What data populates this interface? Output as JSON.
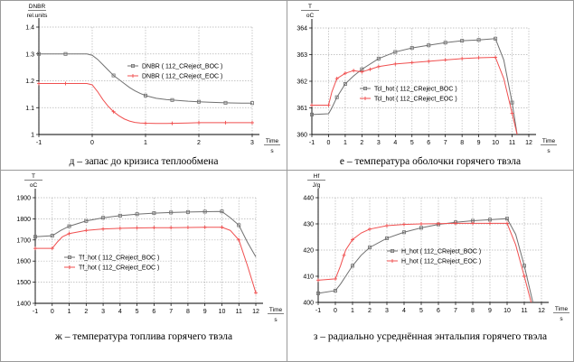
{
  "chart_data": [
    {
      "type": "line",
      "caption": "д – запас до кризиса теплообмена",
      "ylabel_top": "DNBR",
      "ylabel_bottom": "rel.units",
      "xlabel_top": "Time",
      "xlabel_bottom": "s",
      "xlim": [
        -1,
        3
      ],
      "ylim": [
        1.0,
        1.4
      ],
      "xticks": [
        "-1",
        "0",
        "1",
        "2",
        "3"
      ],
      "yticks": [
        "1",
        "1.1",
        "1.2",
        "1.3",
        "1.4"
      ],
      "series": [
        {
          "name": "DNBR ( 112_CReject_BOC )",
          "color": "#707070",
          "marker": "square",
          "x": [
            -1,
            -0.5,
            -0.1,
            0,
            0.1,
            0.2,
            0.3,
            0.4,
            0.5,
            0.6,
            0.7,
            0.8,
            0.9,
            1.0,
            1.2,
            1.4,
            1.6,
            1.8,
            2.0,
            2.2,
            2.5,
            2.8,
            3.0
          ],
          "values": [
            1.3,
            1.3,
            1.3,
            1.295,
            1.28,
            1.26,
            1.24,
            1.22,
            1.205,
            1.19,
            1.175,
            1.163,
            1.153,
            1.145,
            1.135,
            1.13,
            1.127,
            1.124,
            1.122,
            1.12,
            1.118,
            1.117,
            1.117
          ],
          "marker_x": [
            -1,
            -0.5,
            0.4,
            1.0,
            1.5,
            2.0,
            2.5,
            3.0
          ]
        },
        {
          "name": "DNBR ( 112_CReject_EOC )",
          "color": "#f05050",
          "marker": "plus",
          "x": [
            -1,
            -0.5,
            -0.1,
            0,
            0.1,
            0.2,
            0.3,
            0.4,
            0.5,
            0.6,
            0.7,
            0.8,
            0.9,
            1.0,
            1.2,
            1.4,
            1.6,
            1.8,
            2.0,
            2.2,
            2.5,
            2.8,
            3.0
          ],
          "values": [
            1.19,
            1.19,
            1.19,
            1.185,
            1.16,
            1.13,
            1.105,
            1.085,
            1.07,
            1.058,
            1.05,
            1.045,
            1.043,
            1.042,
            1.041,
            1.041,
            1.042,
            1.043,
            1.044,
            1.044,
            1.044,
            1.044,
            1.044
          ],
          "marker_x": [
            -1,
            -0.5,
            0.4,
            1.0,
            1.5,
            2.0,
            2.5,
            3.0
          ]
        }
      ]
    },
    {
      "type": "line",
      "caption": "е – температура оболочки горячего твэла",
      "ylabel_top": "T",
      "ylabel_bottom": "oC",
      "xlabel_top": "Time",
      "xlabel_bottom": "s",
      "xlim": [
        -1,
        12
      ],
      "ylim": [
        360,
        364
      ],
      "xticks": [
        "-1",
        "0",
        "1",
        "2",
        "3",
        "4",
        "5",
        "6",
        "7",
        "8",
        "9",
        "10",
        "11",
        "12"
      ],
      "yticks": [
        "360",
        "361",
        "362",
        "363",
        "364"
      ],
      "series": [
        {
          "name": "Tcl_hot ( 112_CReject_BOC )",
          "color": "#707070",
          "marker": "square",
          "x": [
            -1,
            0,
            0.2,
            0.5,
            1,
            1.5,
            2,
            3,
            4,
            5,
            6,
            7,
            8,
            9,
            10,
            10.5,
            11,
            11.3
          ],
          "values": [
            360.75,
            360.78,
            361.0,
            361.4,
            361.9,
            362.2,
            362.45,
            362.85,
            363.1,
            363.25,
            363.35,
            363.45,
            363.52,
            363.55,
            363.6,
            362.8,
            361.2,
            360.0
          ],
          "marker_x": [
            -1,
            0.5,
            1,
            2,
            3,
            4,
            5,
            6,
            7,
            8,
            9,
            10,
            11
          ]
        },
        {
          "name": "Tcl_hot ( 112_CReject_EOC )",
          "color": "#f05050",
          "marker": "plus",
          "x": [
            -1,
            0,
            0.2,
            0.5,
            1,
            1.5,
            2,
            2.5,
            3,
            4,
            5,
            6,
            7,
            8,
            9,
            10,
            10.5,
            11,
            11.3
          ],
          "values": [
            361.1,
            361.1,
            361.6,
            362.1,
            362.3,
            362.4,
            362.35,
            362.45,
            362.55,
            362.65,
            362.7,
            362.75,
            362.8,
            362.85,
            362.88,
            362.9,
            362.1,
            360.8,
            360.0
          ],
          "marker_x": [
            -1,
            0,
            0.5,
            1,
            1.5,
            2,
            2.5,
            3,
            4,
            5,
            6,
            7,
            8,
            9,
            10,
            11
          ]
        }
      ]
    },
    {
      "type": "line",
      "caption": "ж – температура топлива горячего твэла",
      "ylabel_top": "T",
      "ylabel_bottom": "oC",
      "xlabel_top": "Time",
      "xlabel_bottom": "s",
      "xlim": [
        -1,
        12
      ],
      "ylim": [
        1400,
        1900
      ],
      "xticks": [
        "-1",
        "0",
        "1",
        "2",
        "3",
        "4",
        "5",
        "6",
        "7",
        "8",
        "9",
        "10",
        "11",
        "12"
      ],
      "yticks": [
        "1400",
        "1500",
        "1600",
        "1700",
        "1800",
        "1900"
      ],
      "series": [
        {
          "name": "Tf_hot ( 112_CReject_BOC )",
          "color": "#707070",
          "marker": "square",
          "x": [
            -1,
            0,
            0.5,
            1,
            2,
            3,
            4,
            5,
            6,
            7,
            8,
            9,
            10,
            10.5,
            11,
            11.5,
            12
          ],
          "values": [
            1715,
            1720,
            1745,
            1765,
            1790,
            1805,
            1815,
            1822,
            1827,
            1830,
            1832,
            1834,
            1835,
            1805,
            1770,
            1690,
            1620
          ],
          "marker_x": [
            -1,
            0,
            1,
            2,
            3,
            4,
            5,
            6,
            7,
            8,
            9,
            10,
            11
          ]
        },
        {
          "name": "Tf_hot ( 112_CReject_EOC )",
          "color": "#f05050",
          "marker": "plus",
          "x": [
            -1,
            0,
            0.3,
            0.6,
            1,
            2,
            3,
            4,
            5,
            6,
            7,
            8,
            9,
            10,
            10.5,
            11,
            11.5,
            12
          ],
          "values": [
            1660,
            1660,
            1690,
            1715,
            1730,
            1745,
            1752,
            1755,
            1757,
            1758,
            1758,
            1759,
            1760,
            1760,
            1745,
            1700,
            1580,
            1450
          ],
          "marker_x": [
            -1,
            0,
            1,
            2,
            3,
            4,
            5,
            6,
            7,
            8,
            9,
            10,
            11,
            12
          ]
        }
      ]
    },
    {
      "type": "line",
      "caption": "з – радиально усреднённая энтальпия горячего твэла",
      "ylabel_top": "Hf",
      "ylabel_bottom": "J/g",
      "xlabel_top": "Time",
      "xlabel_bottom": "s",
      "xlim": [
        -1,
        12
      ],
      "ylim": [
        400,
        440
      ],
      "xticks": [
        "-1",
        "0",
        "1",
        "2",
        "3",
        "4",
        "5",
        "6",
        "7",
        "8",
        "9",
        "10",
        "11",
        "12"
      ],
      "yticks": [
        "400",
        "410",
        "420",
        "430",
        "440"
      ],
      "series": [
        {
          "name": "H_hot ( 112_CReject_BOC )",
          "color": "#707070",
          "marker": "square",
          "x": [
            -1,
            0,
            0.3,
            0.6,
            1,
            1.5,
            2,
            3,
            4,
            5,
            6,
            7,
            8,
            9,
            10,
            10.5,
            11,
            11.5
          ],
          "values": [
            403.5,
            404.5,
            407,
            410,
            414,
            418,
            421,
            424.5,
            426.8,
            428.5,
            429.8,
            430.6,
            431.2,
            431.6,
            432.0,
            426,
            414,
            400
          ],
          "marker_x": [
            -1,
            0,
            1,
            2,
            3,
            4,
            5,
            6,
            7,
            8,
            9,
            10,
            11
          ]
        },
        {
          "name": "H_hot ( 112_CReject_EOC )",
          "color": "#f05050",
          "marker": "plus",
          "x": [
            -1,
            0,
            0.3,
            0.6,
            1,
            1.5,
            2,
            3,
            4,
            5,
            6,
            7,
            8,
            9,
            10,
            10.5,
            11,
            11.4
          ],
          "values": [
            408.5,
            409,
            414,
            420,
            424,
            426.5,
            428,
            429.3,
            429.8,
            430,
            430.1,
            430.2,
            430.2,
            430.2,
            430.2,
            422,
            410,
            400
          ],
          "marker_x": [
            -1,
            0,
            0.5,
            1,
            2,
            3,
            4,
            5,
            6,
            7,
            8,
            9,
            10,
            11
          ]
        }
      ]
    }
  ]
}
